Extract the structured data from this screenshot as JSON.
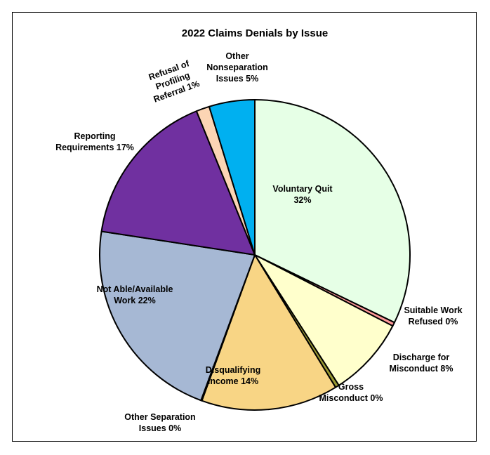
{
  "chart_data": {
    "type": "pie",
    "title": "2022 Claims Denials by Issue",
    "slices": [
      {
        "label": "Voluntary Quit",
        "display": [
          "Voluntary Quit",
          "32%"
        ],
        "value": 32.5,
        "color": "#e6ffe6"
      },
      {
        "label": "Suitable Work Refused",
        "display": [
          "Suitable Work",
          "Refused 0%"
        ],
        "value": 0.4,
        "color": "#ff9999"
      },
      {
        "label": "Discharge for Misconduct",
        "display": [
          "Discharge for",
          "Misconduct 8%"
        ],
        "value": 8.4,
        "color": "#ffffcc"
      },
      {
        "label": "Gross Misconduct",
        "display": [
          "Gross",
          "Misconduct 0%"
        ],
        "value": 0.4,
        "color": "#999933"
      },
      {
        "label": "Disqualifying Income",
        "display": [
          "Disqualifying",
          "Income 14%"
        ],
        "value": 14.4,
        "color": "#f8d585"
      },
      {
        "label": "Other Separation Issues",
        "display": [
          "Other Separation",
          "Issues 0%"
        ],
        "value": 0.1,
        "color": "#ffd9b3"
      },
      {
        "label": "Not Able/Available Work",
        "display": [
          "Not Able/Available",
          "Work 22%"
        ],
        "value": 22.0,
        "color": "#a6b8d4"
      },
      {
        "label": "Reporting Requirements",
        "display": [
          "Reporting",
          "Requirements 17%"
        ],
        "value": 16.6,
        "color": "#7030a0"
      },
      {
        "label": "Refusal of Profiling Referral",
        "display": [
          "Refusal of",
          "Profiling",
          "Referral 1%"
        ],
        "value": 1.4,
        "color": "#fcd5b4"
      },
      {
        "label": "Other Nonseparation Issues",
        "display": [
          "Other",
          "Nonseparation",
          "Issues 5%"
        ],
        "value": 4.8,
        "color": "#00b0f0"
      }
    ]
  }
}
